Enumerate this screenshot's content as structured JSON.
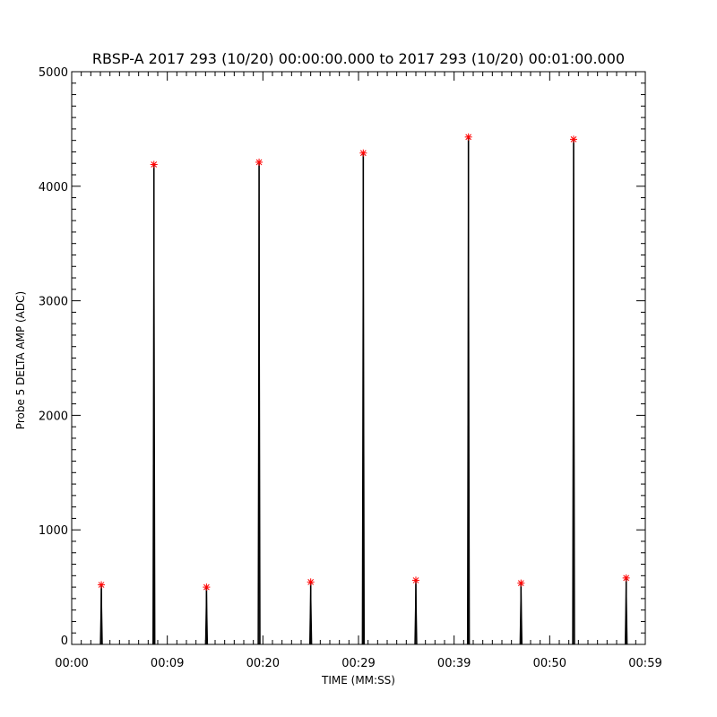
{
  "chart_data": {
    "type": "line",
    "title": "RBSP-A 2017 293 (10/20) 00:00:00.000 to 2017 293 (10/20) 00:01:00.000",
    "xlabel": "TIME (MM:SS)",
    "ylabel": "Probe 5 DELTA AMP (ADC)",
    "xlim": [
      0,
      60
    ],
    "ylim": [
      0,
      5000
    ],
    "x_ticks": [
      {
        "value": 0,
        "label": "00:00"
      },
      {
        "value": 10,
        "label": "00:09"
      },
      {
        "value": 20,
        "label": "00:20"
      },
      {
        "value": 30,
        "label": "00:29"
      },
      {
        "value": 40,
        "label": "00:39"
      },
      {
        "value": 50,
        "label": "00:50"
      },
      {
        "value": 60,
        "label": "00:59"
      }
    ],
    "y_ticks": [
      {
        "value": 0,
        "label": "0"
      },
      {
        "value": 1000,
        "label": "1000"
      },
      {
        "value": 2000,
        "label": "2000"
      },
      {
        "value": 3000,
        "label": "3000"
      },
      {
        "value": 4000,
        "label": "4000"
      },
      {
        "value": 5000,
        "label": "5000"
      }
    ],
    "grid": false,
    "series": [
      {
        "color": "#000000",
        "spikes": [
          {
            "x": 3.1,
            "y": 520
          },
          {
            "x": 8.6,
            "y": 4190
          },
          {
            "x": 14.1,
            "y": 500
          },
          {
            "x": 19.6,
            "y": 4210
          },
          {
            "x": 25.0,
            "y": 545
          },
          {
            "x": 30.5,
            "y": 4290
          },
          {
            "x": 36.0,
            "y": 560
          },
          {
            "x": 41.5,
            "y": 4430
          },
          {
            "x": 47.0,
            "y": 535
          },
          {
            "x": 52.5,
            "y": 4410
          },
          {
            "x": 58.0,
            "y": 580
          }
        ]
      }
    ],
    "peak_marker_color": "#ff0000",
    "peak_marker_symbol": "*"
  }
}
